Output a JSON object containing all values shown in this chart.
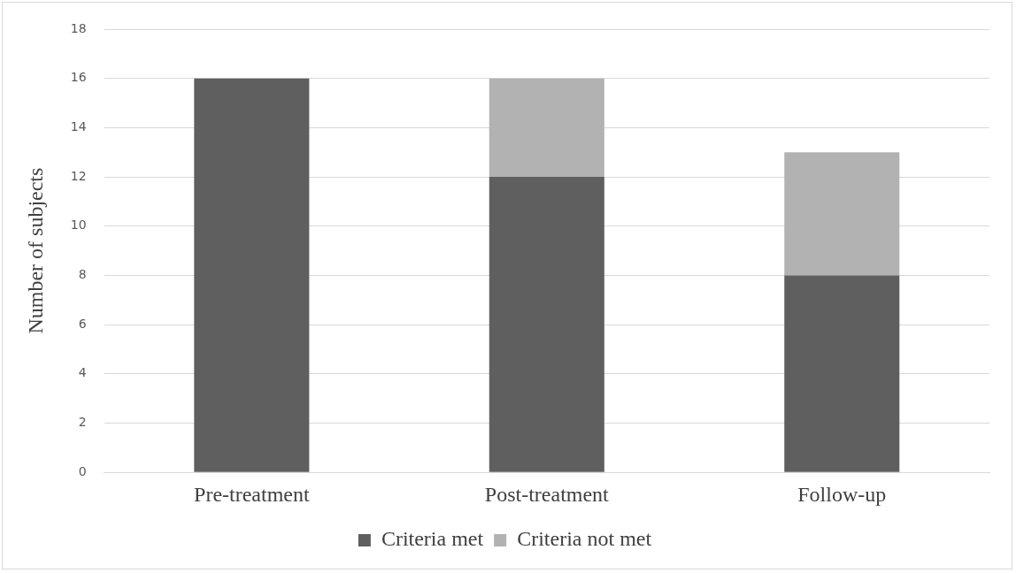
{
  "chart_data": {
    "type": "bar",
    "ylabel": "Number of subjects",
    "categories": [
      "Pre-treatment",
      "Post-treatment",
      "Follow-up"
    ],
    "series": [
      {
        "name": "Criteria met",
        "color": "#5f5f5f",
        "values": [
          16,
          12,
          8
        ]
      },
      {
        "name": "Criteria not met",
        "color": "#b2b2b2",
        "values": [
          0,
          4,
          5
        ]
      }
    ],
    "stacked": true,
    "ylim": [
      0,
      18
    ],
    "yticks": [
      0,
      2,
      4,
      6,
      8,
      10,
      12,
      14,
      16,
      18
    ],
    "grid": "y",
    "legend": "bottom"
  }
}
